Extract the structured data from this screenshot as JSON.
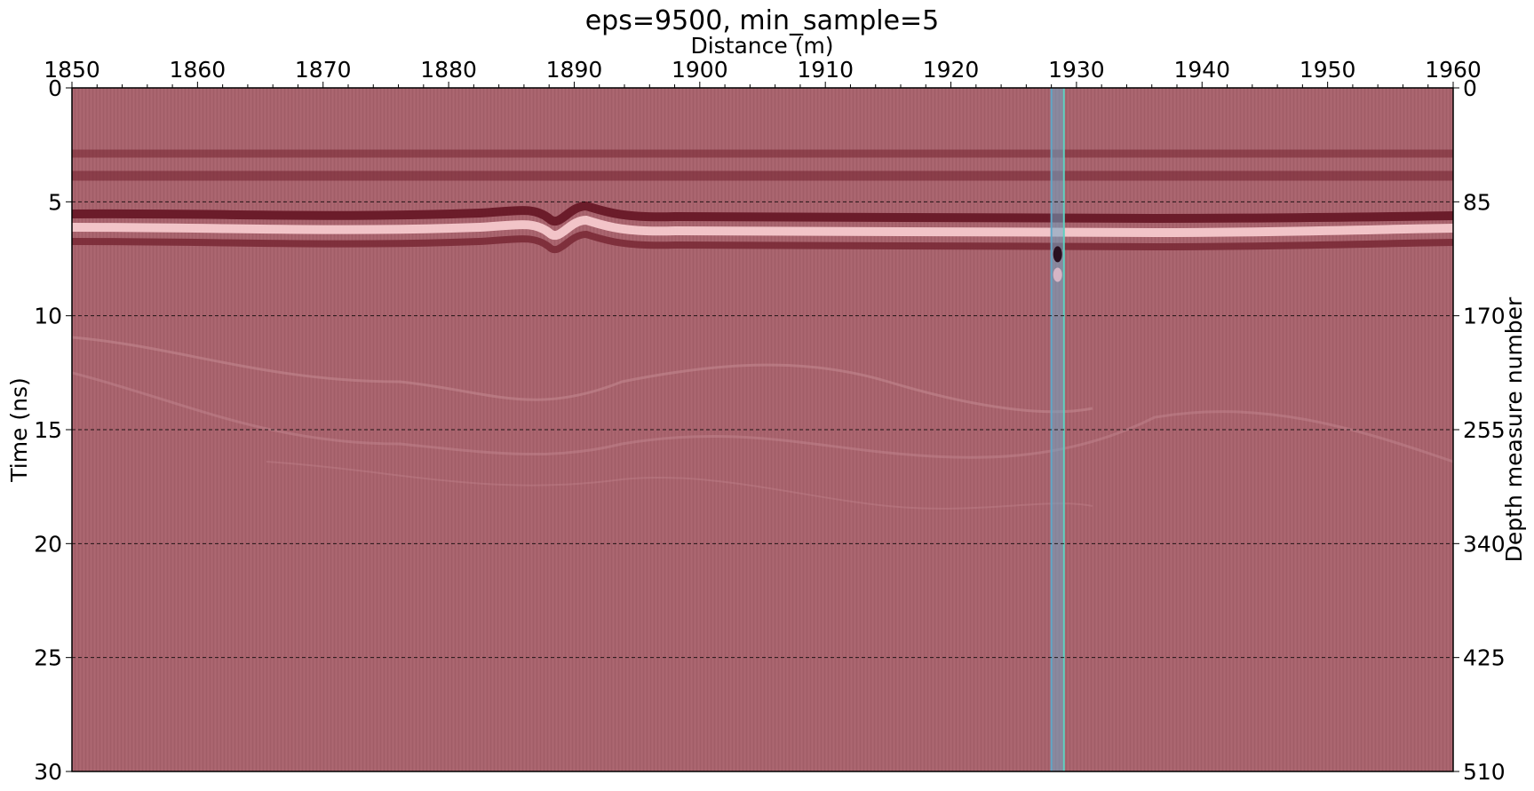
{
  "chart_data": {
    "type": "heatmap",
    "title": "eps=9500, min_sample=5",
    "xlabel": "Distance (m)",
    "ylabel": "Time (ns)",
    "y2label": "Depth measure number",
    "xlim": [
      1850,
      1960
    ],
    "ylim": [
      0,
      30
    ],
    "y2lim": [
      0,
      510
    ],
    "x_ticks": [
      1850,
      1860,
      1870,
      1880,
      1890,
      1900,
      1910,
      1920,
      1930,
      1940,
      1950,
      1960
    ],
    "y_ticks": [
      0,
      5,
      10,
      15,
      20,
      25,
      30
    ],
    "y2_ticks": [
      0,
      85,
      170,
      255,
      340,
      425,
      510
    ],
    "grid": "horizontal dashed lines at y ticks",
    "colors": {
      "background": "#a8636d",
      "band_dark": "#7a2a36",
      "band_light": "#f2c4c8",
      "highlight": "#6fa6c4"
    },
    "reflectors": [
      {
        "name": "",
        "kind": "dark",
        "time_ns": 3.0
      },
      {
        "name": "",
        "kind": "dark",
        "time_ns": 4.0
      },
      {
        "name": "",
        "kind": "dark",
        "time_ns": 5.6
      },
      {
        "name": "",
        "kind": "light",
        "time_ns": 6.2
      },
      {
        "name": "",
        "kind": "dark",
        "time_ns": 6.7
      }
    ],
    "highlight_x": [
      1928.0,
      1929.0
    ]
  }
}
